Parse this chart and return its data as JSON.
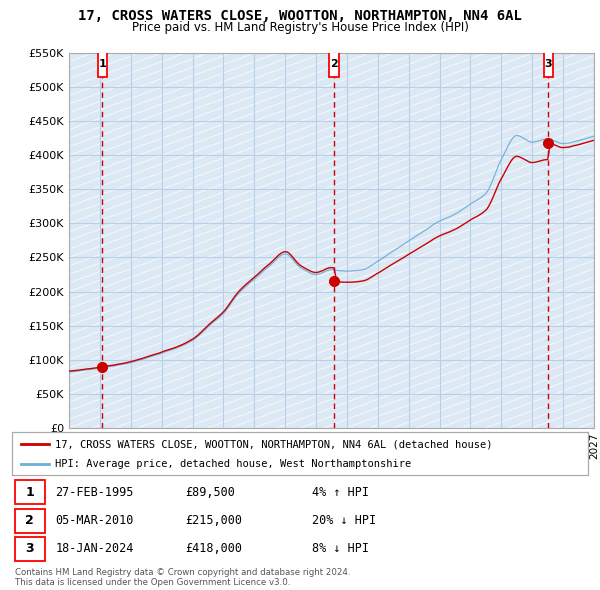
{
  "title": "17, CROSS WATERS CLOSE, WOOTTON, NORTHAMPTON, NN4 6AL",
  "subtitle": "Price paid vs. HM Land Registry's House Price Index (HPI)",
  "ylabel_ticks": [
    "£0",
    "£50K",
    "£100K",
    "£150K",
    "£200K",
    "£250K",
    "£300K",
    "£350K",
    "£400K",
    "£450K",
    "£500K",
    "£550K"
  ],
  "ytick_values": [
    0,
    50000,
    100000,
    150000,
    200000,
    250000,
    300000,
    350000,
    400000,
    450000,
    500000,
    550000
  ],
  "xmin": 1993.0,
  "xmax": 2027.0,
  "ymin": 0,
  "ymax": 550000,
  "sale_dates": [
    1995.15,
    2010.17,
    2024.05
  ],
  "sale_prices": [
    89500,
    215000,
    418000
  ],
  "sale_labels": [
    "1",
    "2",
    "3"
  ],
  "hpi_line_color": "#6baed6",
  "price_line_color": "#cc0000",
  "marker_color": "#cc0000",
  "dashed_line_color": "#cc0000",
  "background_color": "#dce9f5",
  "grid_color": "#b8cfe8",
  "legend_line1": "17, CROSS WATERS CLOSE, WOOTTON, NORTHAMPTON, NN4 6AL (detached house)",
  "legend_line2": "HPI: Average price, detached house, West Northamptonshire",
  "table_rows": [
    [
      "1",
      "27-FEB-1995",
      "£89,500",
      "4% ↑ HPI"
    ],
    [
      "2",
      "05-MAR-2010",
      "£215,000",
      "20% ↓ HPI"
    ],
    [
      "3",
      "18-JAN-2024",
      "£418,000",
      "8% ↓ HPI"
    ]
  ],
  "footer": "Contains HM Land Registry data © Crown copyright and database right 2024.\nThis data is licensed under the Open Government Licence v3.0."
}
